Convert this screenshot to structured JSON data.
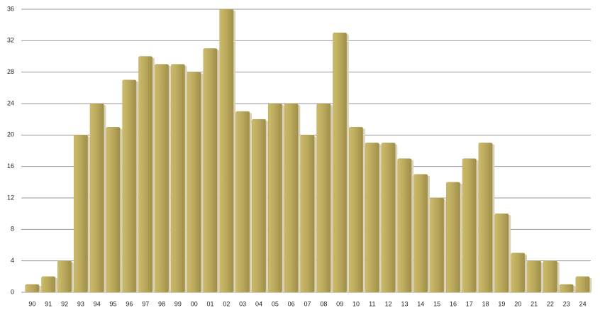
{
  "chart_data": {
    "type": "bar",
    "categories": [
      "90",
      "91",
      "92",
      "93",
      "94",
      "95",
      "96",
      "97",
      "98",
      "99",
      "00",
      "01",
      "02",
      "03",
      "04",
      "05",
      "06",
      "07",
      "08",
      "09",
      "10",
      "11",
      "12",
      "13",
      "14",
      "15",
      "16",
      "17",
      "18",
      "19",
      "20",
      "21",
      "22",
      "23",
      "24"
    ],
    "values": [
      1,
      2,
      4,
      20,
      24,
      21,
      27,
      30,
      29,
      29,
      28,
      31,
      36,
      23,
      22,
      24,
      24,
      20,
      24,
      33,
      21,
      19,
      19,
      17,
      15,
      12,
      14,
      17,
      19,
      10,
      5,
      4,
      4,
      1,
      2
    ],
    "color": "#b8a65a",
    "ylim": [
      0,
      36
    ],
    "yticks": [
      0,
      4,
      8,
      12,
      16,
      20,
      24,
      28,
      32,
      36
    ],
    "grid": true
  }
}
